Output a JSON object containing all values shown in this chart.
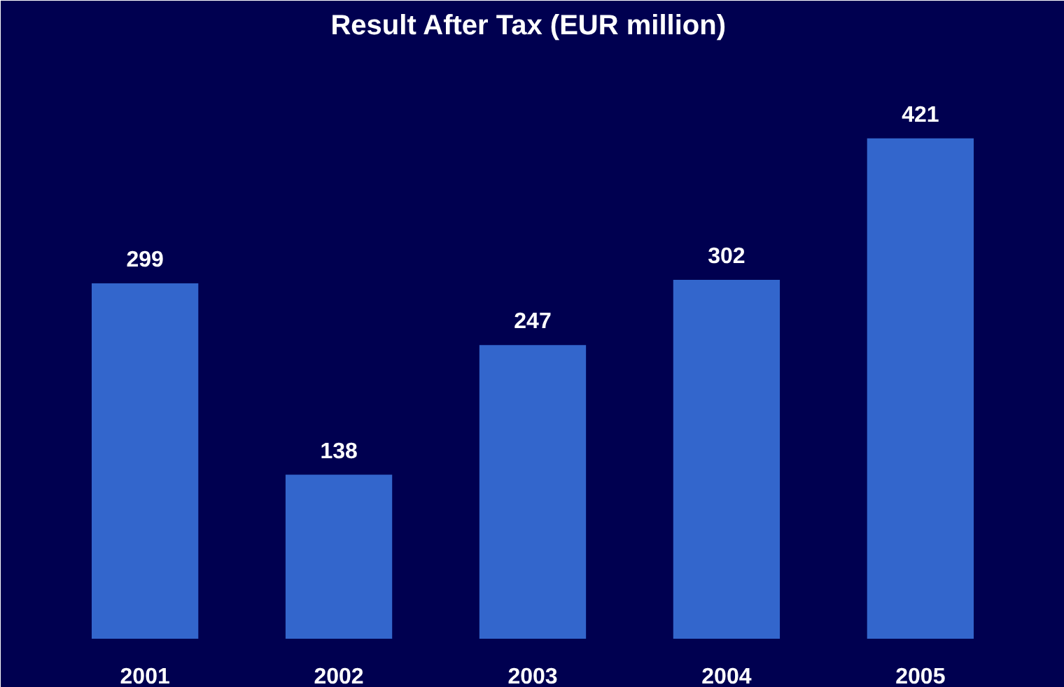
{
  "chart_data": {
    "type": "bar",
    "title": "Result After Tax  (EUR million)",
    "categories": [
      "2001",
      "2002",
      "2003",
      "2004",
      "2005"
    ],
    "values": [
      299,
      138,
      247,
      302,
      421
    ],
    "color": "#3366cc",
    "data_labels": true,
    "grid": false
  }
}
